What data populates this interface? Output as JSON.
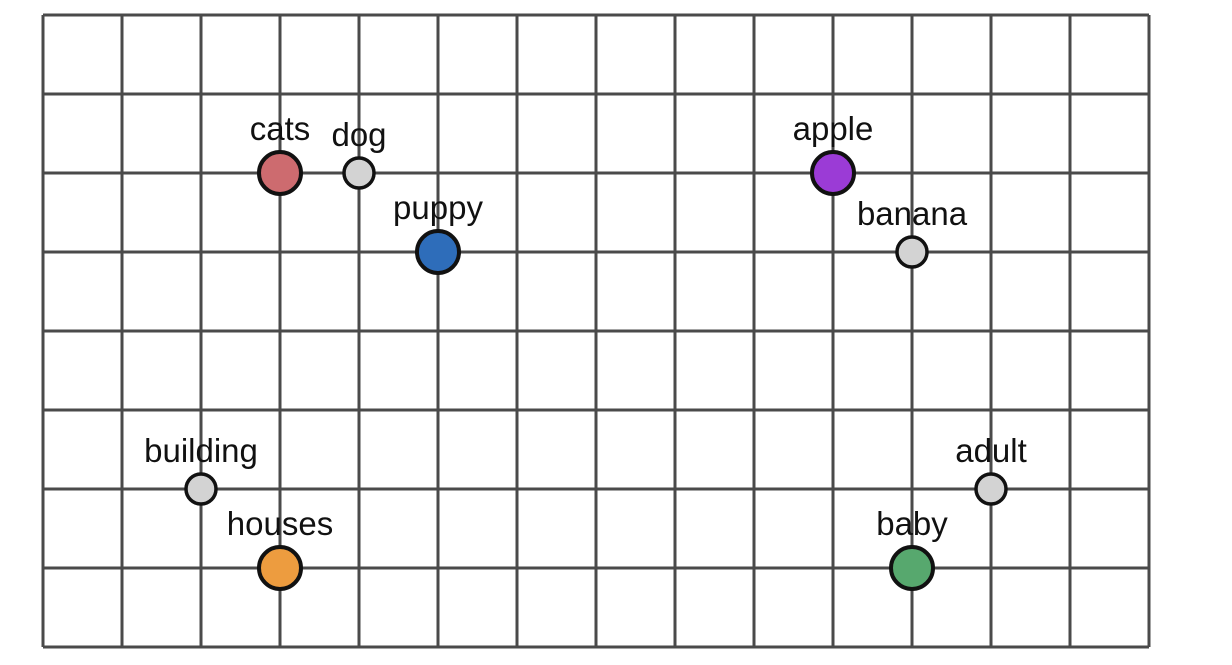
{
  "grid": {
    "columns": 14,
    "rows": 8,
    "line_color": "#4a4a4a"
  },
  "points": [
    {
      "label": "cats",
      "col": 3,
      "row": 2,
      "size": "large",
      "color": "#cd6b6f"
    },
    {
      "label": "dog",
      "col": 4,
      "row": 2,
      "size": "small",
      "color": "#d3d3d3"
    },
    {
      "label": "puppy",
      "col": 5,
      "row": 3,
      "size": "large",
      "color": "#2e6dba"
    },
    {
      "label": "apple",
      "col": 10,
      "row": 2,
      "size": "large",
      "color": "#9b3bd6"
    },
    {
      "label": "banana",
      "col": 11,
      "row": 3,
      "size": "small",
      "color": "#d3d3d3"
    },
    {
      "label": "building",
      "col": 2,
      "row": 6,
      "size": "small",
      "color": "#d3d3d3"
    },
    {
      "label": "houses",
      "col": 3,
      "row": 7,
      "size": "large",
      "color": "#ed9c3f"
    },
    {
      "label": "adult",
      "col": 12,
      "row": 6,
      "size": "small",
      "color": "#d3d3d3"
    },
    {
      "label": "baby",
      "col": 11,
      "row": 7,
      "size": "large",
      "color": "#57a86e"
    }
  ]
}
